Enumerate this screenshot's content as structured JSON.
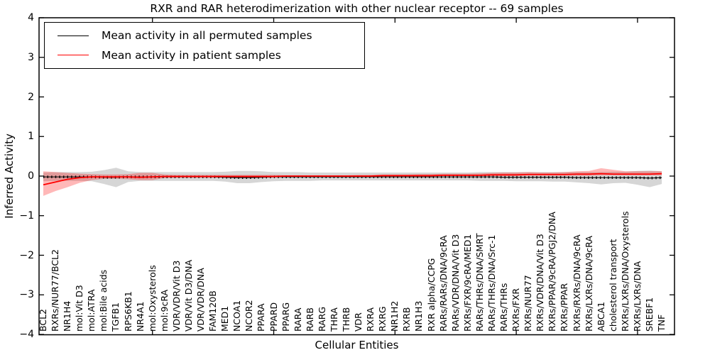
{
  "title": "RXR and RAR heterodimerization with other nuclear receptor -- 69 samples",
  "legend": {
    "entries": [
      {
        "label": "Mean activity in all permuted samples",
        "color": "#000000"
      },
      {
        "label": "Mean activity in patient samples",
        "color": "#ff0000"
      }
    ]
  },
  "axes": {
    "ylabel": "Inferred Activity",
    "xlabel": "Cellular Entities",
    "yticks": [
      4,
      3,
      2,
      1,
      0,
      -1,
      -2,
      -3,
      -4
    ],
    "xtick_values": [
      10,
      20,
      30,
      40,
      50
    ]
  },
  "chart_data": {
    "type": "line",
    "title": "RXR and RAR heterodimerization with other nuclear receptor -- 69 samples",
    "xlabel": "Cellular Entities",
    "ylabel": "Inferred Activity",
    "ylim": [
      -4,
      4
    ],
    "grid": false,
    "legend_position": "upper left",
    "categories": [
      "BCL2",
      "RXRs/NUR77/BCL2",
      "NR1H4",
      "mol:Vit D3",
      "mol:ATRA",
      "mol:Bile acids",
      "TGFB1",
      "RPS6KB1",
      "NR4A1",
      "mol:Oxysterols",
      "mol:9cRA",
      "VDR/VDR/Vit D3",
      "VDR/Vit D3/DNA",
      "VDR/VDR/DNA",
      "FAM120B",
      "MED1",
      "NCOA1",
      "NCOR2",
      "PPARA",
      "PPARD",
      "PPARG",
      "RARA",
      "RARB",
      "RARG",
      "THRA",
      "THRB",
      "VDR",
      "RXRA",
      "RXRG",
      "NR1H2",
      "RXRB",
      "NR1H3",
      "RXR alpha/CCPG",
      "RARs/RARs/DNA/9cRA",
      "RARs/VDR/DNA/Vit D3",
      "RXRs/FXR/9cRA/MED1",
      "RARs/THRs/DNA/SMRT",
      "RARs/THRs/DNA/Src-1",
      "RARs/THRs",
      "RXRs/FXR",
      "RXRs/NUR77",
      "RXRs/VDR/DNA/Vit D3",
      "RXRs/PPAR/9cRA/PGJ2/DNA",
      "RXRs/PPAR",
      "RXRs/RXRs/DNA/9cRA",
      "RXRs/LXRs/DNA/9cRA",
      "ABCA1",
      "cholesterol transport",
      "RXRs/LXRs/DNA/Oxysterols",
      "RXRs/LXRs/DNA",
      "SREBF1",
      "TNF"
    ],
    "series": [
      {
        "name": "Mean activity in all permuted samples",
        "color": "#000000",
        "line_style": "solid-with-dotted-overlay",
        "band_color": "rgba(0,0,0,0.16)",
        "values": [
          -0.02,
          -0.02,
          -0.02,
          -0.02,
          -0.02,
          -0.03,
          -0.03,
          -0.02,
          -0.02,
          -0.02,
          -0.02,
          -0.02,
          -0.02,
          -0.02,
          -0.02,
          -0.03,
          -0.04,
          -0.04,
          -0.03,
          -0.02,
          -0.02,
          -0.02,
          -0.02,
          -0.02,
          -0.02,
          -0.02,
          -0.02,
          -0.02,
          -0.02,
          -0.02,
          -0.02,
          -0.02,
          -0.02,
          -0.02,
          -0.02,
          -0.02,
          -0.02,
          -0.02,
          -0.03,
          -0.03,
          -0.03,
          -0.03,
          -0.03,
          -0.03,
          -0.04,
          -0.04,
          -0.04,
          -0.04,
          -0.04,
          -0.04,
          -0.05,
          -0.04
        ],
        "band_upper": [
          0.09,
          0.1,
          0.1,
          0.1,
          0.11,
          0.15,
          0.21,
          0.12,
          0.1,
          0.1,
          0.1,
          0.1,
          0.1,
          0.1,
          0.1,
          0.11,
          0.13,
          0.13,
          0.12,
          0.1,
          0.1,
          0.1,
          0.09,
          0.09,
          0.09,
          0.09,
          0.09,
          0.09,
          0.09,
          0.09,
          0.09,
          0.09,
          0.09,
          0.09,
          0.09,
          0.09,
          0.1,
          0.1,
          0.1,
          0.1,
          0.1,
          0.1,
          0.1,
          0.1,
          0.1,
          0.1,
          0.1,
          0.11,
          0.11,
          0.13,
          0.14,
          0.12
        ],
        "band_lower": [
          -0.13,
          -0.12,
          -0.12,
          -0.12,
          -0.13,
          -0.2,
          -0.28,
          -0.15,
          -0.12,
          -0.12,
          -0.12,
          -0.12,
          -0.12,
          -0.12,
          -0.12,
          -0.14,
          -0.18,
          -0.18,
          -0.15,
          -0.13,
          -0.12,
          -0.12,
          -0.12,
          -0.11,
          -0.11,
          -0.11,
          -0.11,
          -0.11,
          -0.11,
          -0.11,
          -0.11,
          -0.11,
          -0.11,
          -0.11,
          -0.11,
          -0.11,
          -0.12,
          -0.12,
          -0.12,
          -0.13,
          -0.13,
          -0.13,
          -0.14,
          -0.14,
          -0.16,
          -0.18,
          -0.21,
          -0.18,
          -0.17,
          -0.22,
          -0.28,
          -0.2
        ]
      },
      {
        "name": "Mean activity in patient samples",
        "color": "#ff0000",
        "line_style": "solid",
        "band_color": "rgba(255,0,0,0.28)",
        "values": [
          -0.22,
          -0.15,
          -0.08,
          -0.04,
          -0.02,
          -0.02,
          -0.02,
          -0.02,
          -0.03,
          -0.02,
          -0.01,
          -0.01,
          -0.01,
          -0.01,
          -0.01,
          -0.01,
          -0.01,
          -0.01,
          -0.01,
          -0.01,
          0,
          0,
          0,
          0,
          0,
          0,
          0,
          0,
          0.01,
          0.01,
          0.01,
          0.01,
          0.01,
          0.02,
          0.02,
          0.02,
          0.02,
          0.03,
          0.03,
          0.03,
          0.04,
          0.04,
          0.04,
          0.04,
          0.05,
          0.05,
          0.06,
          0.05,
          0.05,
          0.05,
          0.05,
          0.06
        ],
        "band_upper": [
          0.12,
          0.1,
          0.08,
          0.06,
          0.05,
          0.04,
          0.04,
          0.05,
          0.08,
          0.08,
          0.04,
          0.03,
          0.03,
          0.03,
          0.03,
          0.03,
          0.03,
          0.03,
          0.03,
          0.03,
          0.02,
          0.02,
          0.02,
          0.02,
          0.02,
          0.02,
          0.03,
          0.03,
          0.04,
          0.04,
          0.04,
          0.05,
          0.05,
          0.06,
          0.06,
          0.06,
          0.07,
          0.08,
          0.09,
          0.09,
          0.1,
          0.09,
          0.09,
          0.1,
          0.12,
          0.13,
          0.2,
          0.16,
          0.12,
          0.12,
          0.12,
          0.12
        ],
        "band_lower": [
          -0.5,
          -0.38,
          -0.28,
          -0.17,
          -0.1,
          -0.07,
          -0.07,
          -0.08,
          -0.1,
          -0.1,
          -0.05,
          -0.04,
          -0.04,
          -0.04,
          -0.04,
          -0.03,
          -0.03,
          -0.03,
          -0.03,
          -0.03,
          -0.02,
          -0.02,
          -0.02,
          -0.02,
          -0.02,
          -0.02,
          -0.02,
          -0.02,
          -0.01,
          -0.01,
          -0.01,
          -0.01,
          -0.01,
          0,
          0,
          0,
          0,
          0,
          0,
          0,
          0.01,
          0.01,
          0.01,
          0.01,
          0.01,
          0.01,
          0.02,
          0.02,
          0.02,
          0.02,
          0.02,
          0.02
        ]
      }
    ]
  }
}
